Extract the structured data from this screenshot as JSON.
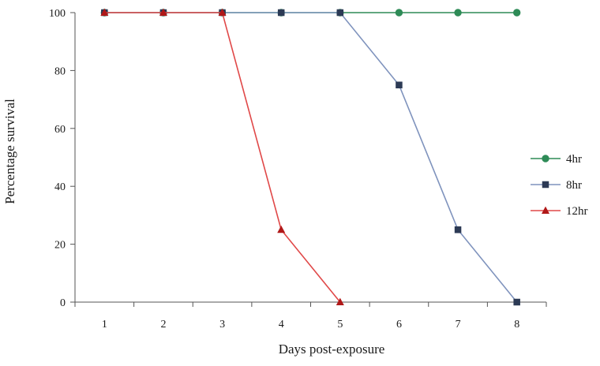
{
  "chart_data": {
    "type": "line",
    "title": "",
    "xlabel": "Days post-exposure",
    "ylabel": "Percentage survival",
    "x": [
      1,
      2,
      3,
      4,
      5,
      6,
      7,
      8
    ],
    "xlim": [
      0.5,
      8.5
    ],
    "ylim": [
      0,
      100
    ],
    "yticks": [
      0,
      20,
      40,
      60,
      80,
      100
    ],
    "grid": false,
    "legend_position": "right",
    "series": [
      {
        "name": "4hr",
        "color": "#2e8b57",
        "marker": "circle",
        "x": [
          1,
          2,
          3,
          4,
          5,
          6,
          7,
          8
        ],
        "values": [
          100,
          100,
          100,
          100,
          100,
          100,
          100,
          100
        ]
      },
      {
        "name": "8hr",
        "color": "#7f93bd",
        "markerColor": "#2c3a55",
        "marker": "square",
        "x": [
          1,
          2,
          3,
          4,
          5,
          6,
          7,
          8
        ],
        "values": [
          100,
          100,
          100,
          100,
          100,
          75,
          25,
          0
        ]
      },
      {
        "name": "12hr",
        "color": "#e04848",
        "markerColor": "#b01818",
        "marker": "triangle",
        "x": [
          1,
          2,
          3,
          4,
          5
        ],
        "values": [
          100,
          100,
          100,
          25,
          0
        ]
      }
    ]
  }
}
